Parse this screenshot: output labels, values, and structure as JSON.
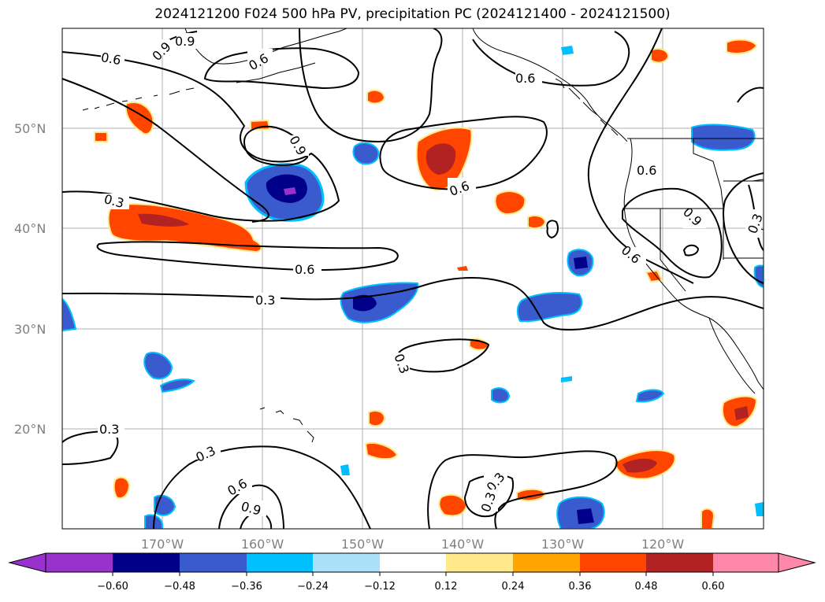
{
  "title": "2024121200 F024 500 hPa PV, precipitation PC (2024121400 - 2024121500)",
  "grid": {
    "lat_labels": [
      "50°N",
      "40°N",
      "30°N",
      "20°N"
    ],
    "lon_labels": [
      "170°W",
      "160°W",
      "150°W",
      "140°W",
      "130°W",
      "120°W"
    ]
  },
  "contour_labels": [
    "0.9",
    "0.9",
    "0.6",
    "0.6",
    "0.6",
    "0.9",
    "0.6",
    "0.6",
    "0.3",
    "0.9",
    "0.3",
    "0.6",
    "0.6",
    "0.3",
    "0.3",
    "0.3",
    "0.3",
    "0.6",
    "0.9",
    "0.3",
    "0.3"
  ],
  "colorbar": {
    "ticks": [
      "−0.60",
      "−0.48",
      "−0.36",
      "−0.24",
      "−0.12",
      "0.12",
      "0.24",
      "0.36",
      "0.48",
      "0.60"
    ],
    "colors": {
      "under": "#9932cc",
      "neg_060": "#00008b",
      "neg_048": "#3a5bcd",
      "neg_036": "#00bfff",
      "neg_024": "#abe0f9",
      "neutral": "#ffffff",
      "pos_012": "#ffe98a",
      "pos_024": "#ffa500",
      "pos_036": "#ff4500",
      "pos_048": "#b22222",
      "over": "#ff88aa"
    }
  }
}
